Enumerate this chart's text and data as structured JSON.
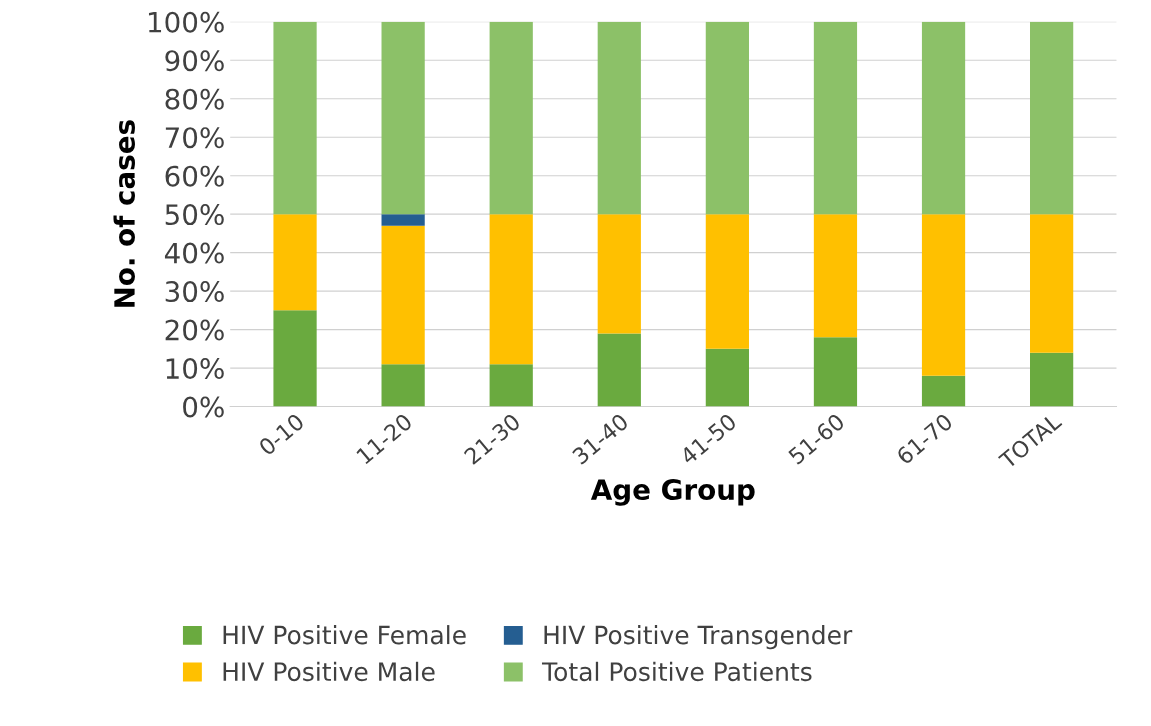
{
  "chart_data": {
    "type": "bar",
    "stacked": true,
    "xlabel": "Age Group",
    "ylabel": "No. of cases",
    "categories": [
      "0-10",
      "11-20",
      "21-30",
      "31-40",
      "41-50",
      "51-60",
      "61-70",
      "TOTAL"
    ],
    "series": [
      {
        "name": "HIV Positive Female",
        "color": "#6aaa3f",
        "values": [
          25,
          11,
          11,
          19,
          15,
          18,
          8,
          14
        ]
      },
      {
        "name": "HIV Positive Male",
        "color": "#ffc000",
        "values": [
          25,
          36,
          39,
          31,
          35,
          32,
          42,
          36
        ]
      },
      {
        "name": "HIV Positive Transgender",
        "color": "#255e91",
        "values": [
          0,
          3,
          0,
          0,
          0,
          0,
          0,
          0
        ]
      },
      {
        "name": "Total Positive Patients",
        "color": "#8cc168",
        "values": [
          50,
          50,
          50,
          50,
          50,
          50,
          50,
          50
        ]
      }
    ],
    "ylim": [
      0,
      100
    ],
    "yticks": [
      {
        "value": 0,
        "label": "0%"
      },
      {
        "value": 10,
        "label": "10%"
      },
      {
        "value": 20,
        "label": "20%"
      },
      {
        "value": 30,
        "label": "30%"
      },
      {
        "value": 40,
        "label": "40%"
      },
      {
        "value": 50,
        "label": "50%"
      },
      {
        "value": 60,
        "label": "60%"
      },
      {
        "value": 70,
        "label": "70%"
      },
      {
        "value": 80,
        "label": "80%"
      },
      {
        "value": 90,
        "label": "90%"
      },
      {
        "value": 100,
        "label": "100%"
      }
    ],
    "grid": "y",
    "legend": "bottom"
  }
}
